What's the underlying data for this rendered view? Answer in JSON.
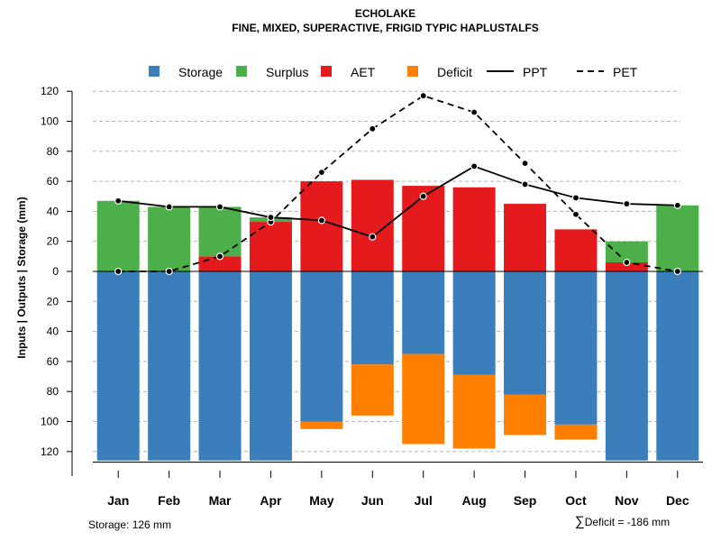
{
  "header": {
    "title": "ECHOLAKE",
    "subtitle": "FINE, MIXED, SUPERACTIVE, FRIGID TYPIC HAPLUSTALFS"
  },
  "footer": {
    "storage_label": "Storage: 126 mm",
    "deficit_symbol": "∑",
    "deficit_label": "Deficit = -186 mm"
  },
  "chart_data": {
    "type": "bar",
    "title": "ECHOLAKE",
    "subtitle": "FINE, MIXED, SUPERACTIVE, FRIGID TYPIC HAPLUSTALFS",
    "xlabel": "",
    "ylabel": "Inputs | Outputs | Storage    (mm)",
    "categories": [
      "Jan",
      "Feb",
      "Mar",
      "Apr",
      "May",
      "Jun",
      "Jul",
      "Aug",
      "Sep",
      "Oct",
      "Nov",
      "Dec"
    ],
    "ylim": [
      -127,
      120
    ],
    "yticks": [
      120,
      100,
      80,
      60,
      40,
      20,
      0,
      -20,
      -40,
      -60,
      -80,
      -100,
      -120
    ],
    "ytick_labels": [
      "120",
      "100",
      "80",
      "60",
      "40",
      "20",
      "0",
      "20",
      "40",
      "60",
      "80",
      "100",
      "120"
    ],
    "grid": true,
    "legend_position": "top",
    "legend": [
      {
        "key": "storage",
        "label": "Storage",
        "kind": "box"
      },
      {
        "key": "surplus",
        "label": "Surplus",
        "kind": "box"
      },
      {
        "key": "aet",
        "label": "AET",
        "kind": "box"
      },
      {
        "key": "deficit",
        "label": "Deficit",
        "kind": "box"
      },
      {
        "key": "ppt",
        "label": "PPT",
        "kind": "solid"
      },
      {
        "key": "pet",
        "label": "PET",
        "kind": "dashed"
      }
    ],
    "colors": {
      "storage": "#3a7fbc",
      "surplus": "#4daf4a",
      "aet": "#e41a1c",
      "deficit": "#ff7f00",
      "grid": "#b3b3b3",
      "line": "#000000"
    },
    "series": [
      {
        "name": "Storage",
        "key": "storage",
        "values": [
          -126,
          -126,
          -126,
          -126,
          -100,
          -62,
          -55,
          -69,
          -82,
          -102,
          -126,
          -126
        ]
      },
      {
        "name": "Deficit",
        "key": "deficit",
        "values": [
          0,
          0,
          0,
          0,
          -5,
          -34,
          -60,
          -49,
          -27,
          -10,
          0,
          0
        ]
      },
      {
        "name": "AET",
        "key": "aet",
        "values": [
          0,
          0,
          10,
          33,
          60,
          61,
          57,
          56,
          45,
          28,
          6,
          0
        ]
      },
      {
        "name": "Surplus",
        "key": "surplus",
        "values": [
          47,
          43,
          33,
          3,
          0,
          0,
          0,
          0,
          0,
          0,
          14,
          44
        ]
      },
      {
        "name": "PPT",
        "key": "ppt",
        "values": [
          47,
          43,
          43,
          36,
          34,
          23,
          50,
          70,
          58,
          49,
          45,
          44
        ]
      },
      {
        "name": "PET",
        "key": "pet",
        "values": [
          0,
          0,
          10,
          33,
          66,
          95,
          117,
          106,
          72,
          38,
          6,
          0
        ]
      }
    ]
  }
}
